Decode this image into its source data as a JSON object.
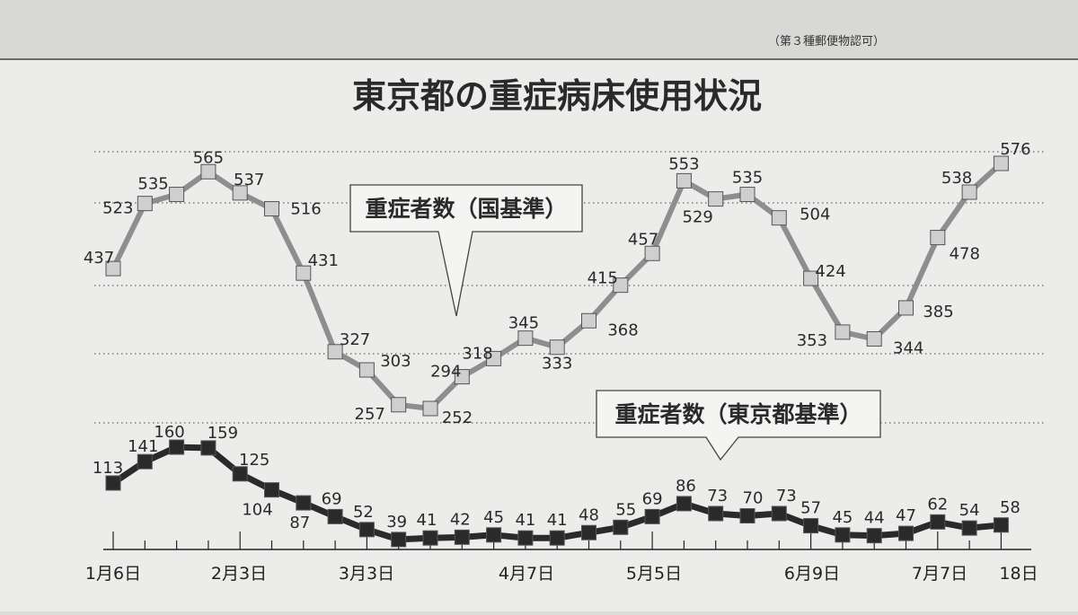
{
  "header_note": "（第３種郵便物認可）",
  "chart_data": {
    "type": "line",
    "title": "東京都の重症病床使用状況",
    "xlabel": "",
    "ylabel": "",
    "grid": true,
    "x_tick_labels": [
      "1月6日",
      "2月3日",
      "3月3日",
      "4月7日",
      "5月5日",
      "6月9日",
      "7月7日",
      "18日"
    ],
    "x_tick_index": [
      0,
      4,
      8,
      13,
      17,
      22,
      26,
      28
    ],
    "series": [
      {
        "name": "重症者数（国基準）",
        "values": [
          437,
          523,
          535,
          565,
          537,
          516,
          431,
          327,
          303,
          257,
          252,
          294,
          318,
          345,
          333,
          368,
          415,
          457,
          553,
          529,
          535,
          504,
          424,
          353,
          344,
          385,
          478,
          538,
          576
        ],
        "labels": [
          "437",
          "523",
          "535",
          "565",
          "537",
          "516",
          "431",
          "327",
          "303",
          "257",
          "252",
          "294",
          "318",
          "345",
          "333",
          "368",
          "415",
          "457",
          "553",
          "529",
          "535",
          "504",
          "424",
          "353",
          "344",
          "385",
          "478",
          "538",
          "576"
        ],
        "color": "#8e8e8e",
        "marker_fill": "#cfcfcf"
      },
      {
        "name": "重症者数（東京都基準）",
        "values": [
          113,
          141,
          160,
          159,
          125,
          104,
          87,
          69,
          52,
          39,
          41,
          42,
          45,
          41,
          41,
          48,
          55,
          69,
          86,
          73,
          70,
          73,
          57,
          45,
          44,
          47,
          62,
          54,
          58
        ],
        "labels": [
          "113",
          "141",
          "160",
          "159",
          "125",
          "104",
          "87",
          "69",
          "52",
          "39",
          "41",
          "42",
          "45",
          "41",
          "41",
          "48",
          "55",
          "69",
          "86",
          "73",
          "70",
          "73",
          "57",
          "45",
          "44",
          "47",
          "62",
          "54",
          "58"
        ],
        "color": "#2a2a2a",
        "marker_fill": "#2a2a2a"
      }
    ]
  }
}
